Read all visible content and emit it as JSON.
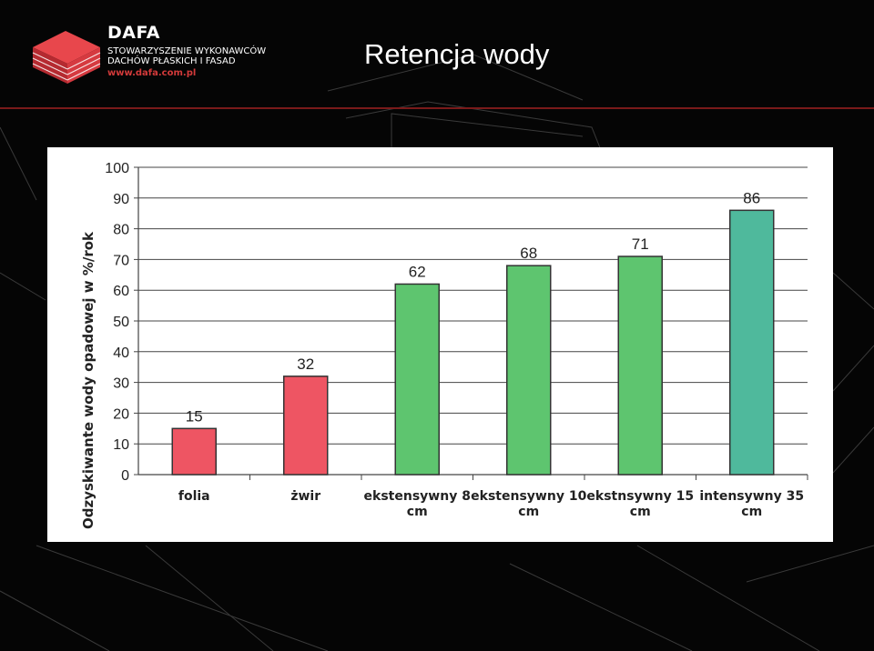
{
  "header": {
    "logo": {
      "name": "DAFA",
      "line1": "STOWARZYSZENIE WYKONAWCÓW",
      "line2": "DACHÓW PŁASKICH I FASAD",
      "url": "www.dafa.com.pl"
    },
    "title": "Retencja wody"
  },
  "colors": {
    "red_bar": "#ee5563",
    "green_bar": "#5ec56f",
    "teal_bar": "#4fb99c",
    "brand_red": "#c8323a"
  },
  "chart_data": {
    "type": "bar",
    "title": "",
    "xlabel": "",
    "ylabel": "Odzyskiwante wody opadowej w %/rok",
    "ylim": [
      0,
      100
    ],
    "yticks": [
      0,
      10,
      20,
      30,
      40,
      50,
      60,
      70,
      80,
      90,
      100
    ],
    "grid": true,
    "categories": [
      [
        "folia"
      ],
      [
        "żwir"
      ],
      [
        "ekstensywny 8",
        "cm"
      ],
      [
        "ekstensywny 10",
        "cm"
      ],
      [
        "ekstnsywny 15",
        "cm"
      ],
      [
        "intensywny 35",
        "cm"
      ]
    ],
    "values": [
      15,
      32,
      62,
      68,
      71,
      86
    ],
    "bar_colors": [
      "#ee5563",
      "#ee5563",
      "#5ec56f",
      "#5ec56f",
      "#5ec56f",
      "#4fb99c"
    ]
  }
}
